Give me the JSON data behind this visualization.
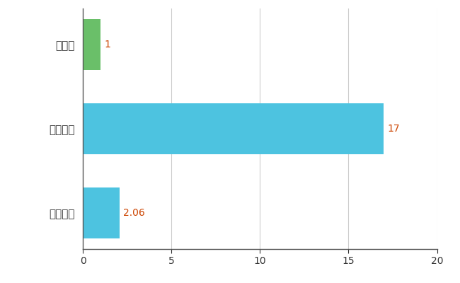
{
  "categories": [
    "全国平均",
    "全国最大",
    "新潟県"
  ],
  "values": [
    2.06,
    17,
    1
  ],
  "bar_colors": [
    "#4dc3e0",
    "#4dc3e0",
    "#6abf69"
  ],
  "value_labels": [
    "2.06",
    "17",
    "1"
  ],
  "value_label_colors": [
    "#cc4400",
    "#cc4400",
    "#cc4400"
  ],
  "xlim": [
    0,
    20
  ],
  "xticks": [
    0,
    5,
    10,
    15,
    20
  ],
  "grid_color": "#cccccc",
  "background_color": "#ffffff",
  "bar_height": 0.6,
  "figsize": [
    6.5,
    4.0
  ],
  "dpi": 100
}
